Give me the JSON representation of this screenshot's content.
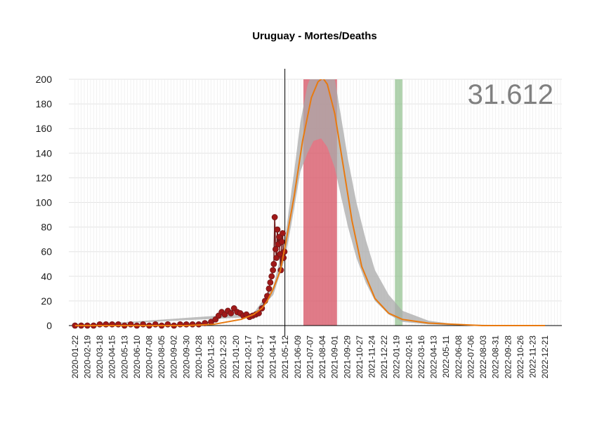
{
  "chart_data": {
    "type": "scatter",
    "title": "Uruguay - Mortes/Deaths",
    "total_label": "31.612",
    "xlabel": "",
    "ylabel": "",
    "x_range": [
      "2020-01-08",
      "2023-01-28"
    ],
    "ylim": [
      -5,
      200
    ],
    "y_ticks": [
      0,
      20,
      40,
      60,
      80,
      100,
      120,
      140,
      160,
      180,
      200
    ],
    "x_tick_labels": [
      "2020-01-22",
      "2020-02-19",
      "2020-03-18",
      "2020-04-15",
      "2020-05-13",
      "2020-06-10",
      "2020-07-08",
      "2020-08-05",
      "2020-09-02",
      "2020-09-30",
      "2020-10-28",
      "2020-11-25",
      "2020-12-23",
      "2021-01-20",
      "2021-02-17",
      "2021-03-17",
      "2021-04-14",
      "2021-05-12",
      "2021-06-09",
      "2021-07-07",
      "2021-08-04",
      "2021-09-01",
      "2021-09-29",
      "2021-10-27",
      "2021-11-24",
      "2021-12-22",
      "2022-01-19",
      "2022-02-16",
      "2022-03-16",
      "2022-04-13",
      "2022-05-11",
      "2022-06-08",
      "2022-07-06",
      "2022-08-03",
      "2022-08-31",
      "2022-09-28",
      "2022-10-26",
      "2022-11-23",
      "2022-12-21"
    ],
    "grid": true,
    "vertical_line_date": "2021-05-11",
    "red_band": [
      "2021-06-22",
      "2021-09-06"
    ],
    "green_band": [
      "2022-01-15",
      "2022-02-01"
    ],
    "colors": {
      "points": "#a01818",
      "points_dark": "#6e1a1a",
      "fit_line": "#e87a10",
      "confidence_band": "#aaaaaa",
      "red_band": "#d85a6a",
      "green_band": "#8fbf8c",
      "total_text": "#808080"
    },
    "fit_curve": {
      "x": [
        "2020-01-22",
        "2020-06-01",
        "2020-10-01",
        "2020-12-01",
        "2021-01-01",
        "2021-02-01",
        "2021-03-01",
        "2021-03-20",
        "2021-04-01",
        "2021-04-15",
        "2021-05-01",
        "2021-05-12",
        "2021-06-01",
        "2021-06-20",
        "2021-07-10",
        "2021-07-25",
        "2021-08-05",
        "2021-08-15",
        "2021-09-01",
        "2021-09-20",
        "2021-10-10",
        "2021-11-01",
        "2021-12-01",
        "2022-01-01",
        "2022-02-01",
        "2022-04-01",
        "2022-06-01",
        "2022-08-01",
        "2022-12-21"
      ],
      "y": [
        0,
        0,
        0,
        1,
        3,
        5,
        9,
        14,
        20,
        30,
        45,
        65,
        105,
        150,
        185,
        198,
        201,
        196,
        172,
        130,
        85,
        48,
        22,
        10,
        5,
        2,
        1,
        0,
        0
      ]
    },
    "band_upper": {
      "x": [
        "2020-01-22",
        "2021-03-01",
        "2021-04-15",
        "2021-05-12",
        "2021-06-01",
        "2021-06-15",
        "2021-07-01",
        "2021-07-15",
        "2021-08-01",
        "2021-08-15",
        "2021-09-01",
        "2021-09-15",
        "2021-10-01",
        "2021-10-20",
        "2021-11-10",
        "2021-12-01",
        "2022-01-01",
        "2022-02-01",
        "2022-04-01",
        "2022-06-01",
        "2022-12-21"
      ],
      "y": [
        0,
        10,
        32,
        72,
        125,
        165,
        195,
        208,
        210,
        208,
        200,
        170,
        135,
        100,
        70,
        45,
        25,
        12,
        4,
        1,
        0
      ]
    },
    "band_lower": {
      "x": [
        "2020-01-22",
        "2021-03-01",
        "2021-04-15",
        "2021-05-12",
        "2021-06-01",
        "2021-06-15",
        "2021-07-01",
        "2021-07-15",
        "2021-08-01",
        "2021-08-15",
        "2021-09-01",
        "2021-09-15",
        "2021-10-01",
        "2021-10-20",
        "2021-11-10",
        "2021-12-01",
        "2022-01-01",
        "2022-02-01",
        "2022-04-01",
        "2022-06-01",
        "2022-12-21"
      ],
      "y": [
        0,
        7,
        25,
        55,
        95,
        125,
        140,
        150,
        152,
        145,
        128,
        105,
        80,
        55,
        35,
        20,
        9,
        3,
        1,
        0,
        0
      ]
    },
    "series": [
      {
        "x": [
          "2020-01-22",
          "2020-02-05",
          "2020-02-19",
          "2020-03-04",
          "2020-03-18",
          "2020-04-01",
          "2020-04-15",
          "2020-04-29",
          "2020-05-13",
          "2020-05-27",
          "2020-06-10",
          "2020-06-24",
          "2020-07-08",
          "2020-07-22",
          "2020-08-05",
          "2020-08-19",
          "2020-09-02",
          "2020-09-16",
          "2020-09-30",
          "2020-10-14",
          "2020-10-28",
          "2020-11-11",
          "2020-11-25",
          "2020-12-05",
          "2020-12-12",
          "2020-12-19",
          "2020-12-26",
          "2021-01-02",
          "2021-01-09",
          "2021-01-16",
          "2021-01-23",
          "2021-01-30",
          "2021-02-06",
          "2021-02-13",
          "2021-02-20",
          "2021-02-27",
          "2021-03-06",
          "2021-03-13",
          "2021-03-20",
          "2021-03-27",
          "2021-04-01",
          "2021-04-05",
          "2021-04-08",
          "2021-04-11",
          "2021-04-14",
          "2021-04-16",
          "2021-04-18",
          "2021-04-20",
          "2021-04-22",
          "2021-04-24",
          "2021-04-26",
          "2021-04-28",
          "2021-04-30",
          "2021-05-02",
          "2021-05-04",
          "2021-05-06",
          "2021-05-08",
          "2021-05-10"
        ],
        "values": [
          0,
          0,
          0,
          0,
          1,
          1,
          1,
          1,
          0,
          1,
          0,
          1,
          0,
          1,
          0,
          1,
          0,
          1,
          1,
          1,
          1,
          2,
          3,
          5,
          8,
          11,
          9,
          12,
          10,
          14,
          11,
          10,
          8,
          9,
          7,
          8,
          9,
          10,
          14,
          20,
          24,
          30,
          35,
          40,
          45,
          50,
          88,
          62,
          55,
          78,
          66,
          72,
          58,
          45,
          68,
          75,
          55,
          60
        ]
      }
    ]
  }
}
